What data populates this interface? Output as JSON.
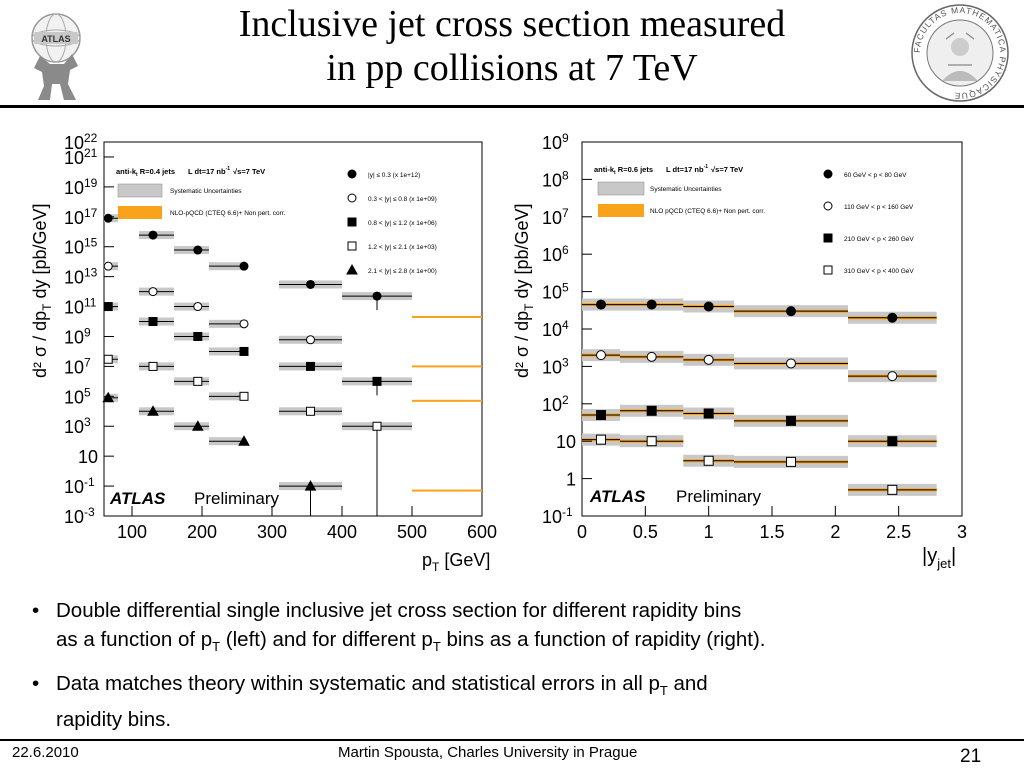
{
  "slide": {
    "title_line1": "Inclusive jet cross section measured",
    "title_line2": "in pp collisions at 7 TeV",
    "bullet_symbol": "•",
    "bullets": [
      {
        "line1": "Double differential single inclusive jet cross section for different rapidity bins",
        "line2_a": "as a function of p",
        "line2_sub1": "T",
        "line2_b": " (left) and for different p",
        "line2_sub2": "T",
        "line2_c": " bins as a function of rapidity (right)."
      },
      {
        "line1_a": "Data matches theory within systematic and statistical errors in all p",
        "line1_sub": "T",
        "line1_b": " and",
        "line2": "rapidity bins."
      }
    ],
    "footer": {
      "date": "22.6.2010",
      "author": "Martin Spousta,  Charles University in Prague",
      "page": "21"
    },
    "logos": {
      "left_text": "ATLAS",
      "right_text": "FACULTAS MATHEMATICA PHYSICAQUE"
    }
  },
  "chart_data": [
    {
      "type": "scatter",
      "y_log_scale": true,
      "xlim": [
        60,
        600
      ],
      "ylim": [
        0.001,
        1e+22
      ],
      "x_ticks": [
        "100",
        "200",
        "300",
        "400",
        "500",
        "600"
      ],
      "y_ticks": [
        {
          "mant": "10",
          "exp": "22"
        },
        {
          "mant": "10",
          "exp": "21"
        },
        {
          "mant": "10",
          "exp": "19"
        },
        {
          "mant": "10",
          "exp": "17"
        },
        {
          "mant": "10",
          "exp": "15"
        },
        {
          "mant": "10",
          "exp": "13"
        },
        {
          "mant": "10",
          "exp": "11"
        },
        {
          "mant": "10",
          "exp": "9"
        },
        {
          "mant": "10",
          "exp": "7"
        },
        {
          "mant": "10",
          "exp": "5"
        },
        {
          "mant": "10",
          "exp": "3"
        },
        {
          "mant": "10",
          "exp": ""
        },
        {
          "mant": "10",
          "exp": "-1"
        },
        {
          "mant": "10",
          "exp": "-3"
        }
      ],
      "xlabel": "p",
      "xlabel_sub": "T",
      "xlabel_unit": " [GeV]",
      "ylabel": "d² σ / dp",
      "ylabel_sub": "T",
      "ylabel_tail": " dy [pb/GeV]",
      "header_left": "anti-k",
      "header_left_sub": "t",
      "header_left_tail": " R=0.4 jets",
      "header_lumi": "L dt=17 nb",
      "header_lumi_sup": "-1",
      "header_sqrt": "√s=7 TeV",
      "legend_band_syst": "Systematic Uncertainties",
      "legend_band_theory": "NLO-pQCD (CTEQ 6.6)+ Non pert. corr.",
      "watermark_atlas": "ATLAS",
      "watermark_prelim": "Preliminary",
      "series": [
        {
          "name": "|y|  ≤ 0.3 (x 1e+12)",
          "marker": "filled-circle",
          "x": [
            66,
            130,
            194,
            260,
            355,
            450
          ],
          "x_low": [
            60,
            110,
            160,
            210,
            310,
            400
          ],
          "x_high": [
            80,
            160,
            210,
            260,
            400,
            500
          ],
          "y": [
            8e+16,
            6000000000000000.0,
            600000000000000.0,
            50000000000000.0,
            3000000000000.0,
            500000000000.0
          ],
          "theory_extra": [
            {
              "x_low": 500,
              "x_high": 600,
              "y": 20000000000.0
            }
          ]
        },
        {
          "name": "0.3 < |y|  ≤ 0.8 (x 1e+09)",
          "marker": "open-circle",
          "x": [
            66,
            130,
            194,
            260,
            355
          ],
          "x_low": [
            60,
            110,
            160,
            210,
            310
          ],
          "x_high": [
            80,
            160,
            210,
            260,
            400
          ],
          "y": [
            50000000000000.0,
            1000000000000.0,
            100000000000.0,
            7000000000.0,
            600000000.0
          ],
          "theory_extra": [
            {
              "x_low": 500,
              "x_high": 600,
              "y": 10000000.0
            }
          ]
        },
        {
          "name": "0.8 < |y|  ≤ 1.2 (x 1e+06)",
          "marker": "filled-square",
          "x": [
            66,
            130,
            194,
            260,
            355,
            450
          ],
          "x_low": [
            60,
            110,
            160,
            210,
            310,
            400
          ],
          "x_high": [
            80,
            160,
            210,
            260,
            400,
            500
          ],
          "y": [
            100000000000.0,
            10000000000.0,
            1000000000.0,
            100000000.0,
            10000000.0,
            1000000.0
          ],
          "theory_extra": [
            {
              "x_low": 500,
              "x_high": 600,
              "y": 50000.0
            }
          ]
        },
        {
          "name": "1.2 < |y|  ≤ 2.1 (x 1e+03)",
          "marker": "open-square",
          "x": [
            66,
            130,
            194,
            260,
            355,
            450
          ],
          "x_low": [
            60,
            110,
            160,
            210,
            310,
            400
          ],
          "x_high": [
            80,
            160,
            210,
            260,
            400,
            500
          ],
          "y": [
            30000000.0,
            10000000.0,
            1000000.0,
            100000.0,
            10000.0,
            1000.0
          ],
          "theory_extra": []
        },
        {
          "name": "2.1 < |y|  ≤ 2.8 (x 1e+00)",
          "marker": "filled-triangle",
          "x": [
            66,
            130,
            194,
            260,
            355
          ],
          "x_low": [
            60,
            110,
            160,
            210,
            310
          ],
          "x_high": [
            80,
            160,
            210,
            260,
            400
          ],
          "y": [
            80000.0,
            10000.0,
            1000.0,
            100.0,
            0.1
          ],
          "theory_extra": [
            {
              "x_low": 500,
              "x_high": 600,
              "y": 0.05
            }
          ]
        }
      ]
    },
    {
      "type": "scatter",
      "y_log_scale": true,
      "xlim": [
        0,
        3
      ],
      "ylim": [
        0.1,
        1000000000.0
      ],
      "x_ticks": [
        "0",
        "0.5",
        "1",
        "1.5",
        "2",
        "2.5",
        "3"
      ],
      "y_ticks": [
        {
          "mant": "10",
          "exp": "9"
        },
        {
          "mant": "10",
          "exp": "8"
        },
        {
          "mant": "10",
          "exp": "7"
        },
        {
          "mant": "10",
          "exp": "6"
        },
        {
          "mant": "10",
          "exp": "5"
        },
        {
          "mant": "10",
          "exp": "4"
        },
        {
          "mant": "10",
          "exp": "3"
        },
        {
          "mant": "10",
          "exp": "2"
        },
        {
          "mant": "10",
          "exp": ""
        },
        {
          "mant": "1",
          "exp": ""
        },
        {
          "mant": "10",
          "exp": "-1"
        }
      ],
      "xlabel": "|y",
      "xlabel_sub": "jet",
      "xlabel_unit": "|",
      "ylabel": "d² σ / dp",
      "ylabel_sub": "T",
      "ylabel_tail": " dy [pb/GeV]",
      "header_left": "anti-k",
      "header_left_sub": "t",
      "header_left_tail": " R=0.6 jets",
      "header_lumi": "L dt=17 nb",
      "header_lumi_sup": "-1",
      "header_sqrt": "√s=7 TeV",
      "legend_band_syst": "Systematic Uncertainties",
      "legend_band_theory": "NLO pQCD (CTEQ 6.6)+ Non pert. corr.",
      "watermark_atlas": "ATLAS",
      "watermark_prelim": "Preliminary",
      "series": [
        {
          "name": "60 GeV < p  < 80 GeV",
          "marker": "filled-circle",
          "x": [
            0.15,
            0.55,
            1.0,
            1.65,
            2.45
          ],
          "x_low": [
            0,
            0.3,
            0.8,
            1.2,
            2.1
          ],
          "x_high": [
            0.3,
            0.8,
            1.2,
            2.1,
            2.8
          ],
          "y": [
            45000.0,
            45000.0,
            40000.0,
            30000.0,
            20000.0
          ]
        },
        {
          "name": "110 GeV < p  < 160 GeV",
          "marker": "open-circle",
          "x": [
            0.15,
            0.55,
            1.0,
            1.65,
            2.45
          ],
          "x_low": [
            0,
            0.3,
            0.8,
            1.2,
            2.1
          ],
          "x_high": [
            0.3,
            0.8,
            1.2,
            2.1,
            2.8
          ],
          "y": [
            2000,
            1800,
            1500,
            1200,
            550
          ]
        },
        {
          "name": "210 GeV < p  < 260 GeV",
          "marker": "filled-square",
          "x": [
            0.15,
            0.55,
            1.0,
            1.65,
            2.45
          ],
          "x_low": [
            0,
            0.3,
            0.8,
            1.2,
            2.1
          ],
          "x_high": [
            0.3,
            0.8,
            1.2,
            2.1,
            2.8
          ],
          "y": [
            50,
            65,
            55,
            35,
            10
          ]
        },
        {
          "name": "310 GeV < p  < 400 GeV",
          "marker": "open-square",
          "x": [
            0.15,
            0.55,
            1.0,
            1.65,
            2.45
          ],
          "x_low": [
            0,
            0.3,
            0.8,
            1.2,
            2.1
          ],
          "x_high": [
            0.3,
            0.8,
            1.2,
            2.1,
            2.8
          ],
          "y": [
            11,
            10,
            3,
            2.8,
            0.5
          ]
        }
      ]
    }
  ]
}
